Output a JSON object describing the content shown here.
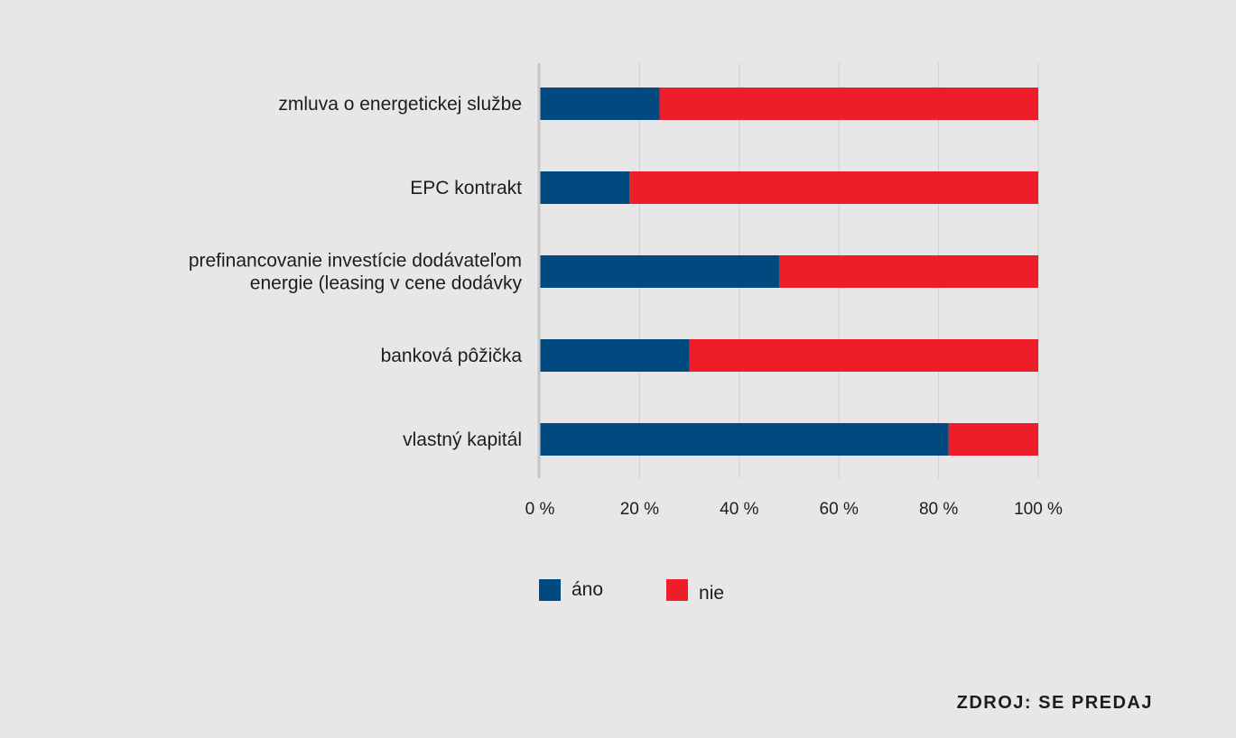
{
  "chart_data": {
    "type": "bar",
    "orientation": "horizontal",
    "stacked": true,
    "categories": [
      [
        "zmluva o energetickej službe"
      ],
      [
        "EPC kontrakt"
      ],
      [
        "prefinancovanie investície dodávateľom",
        "energie (leasing v cene dodávky"
      ],
      [
        "banková pôžička"
      ],
      [
        "vlastný kapitál"
      ]
    ],
    "series": [
      {
        "name": "áno",
        "color": "#004a80",
        "values": [
          24,
          18,
          48,
          30,
          82
        ]
      },
      {
        "name": "nie",
        "color": "#ee1d2a",
        "values": [
          76,
          82,
          52,
          70,
          18
        ]
      }
    ],
    "xlim": [
      0,
      100
    ],
    "x_ticks": [
      "0 %",
      "20 %",
      "40 %",
      "60 %",
      "80 %",
      "100 %"
    ],
    "grid": true,
    "legend_position": "bottom"
  },
  "source": "ZDROJ: SE PREDAJ"
}
